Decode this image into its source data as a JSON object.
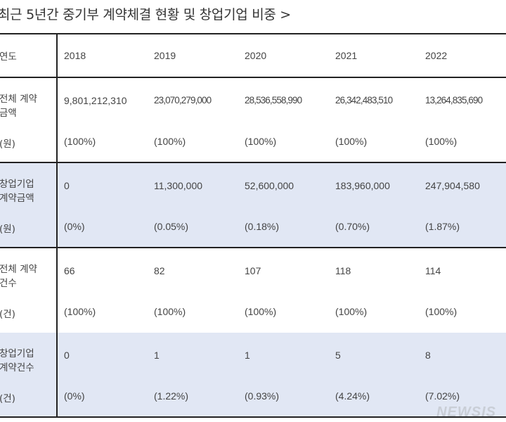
{
  "title": "최근 5년간 중기부 계약체결 현황 및 창업기업 비중 >",
  "header": {
    "label": "연도",
    "years": [
      "2018",
      "2019",
      "2020",
      "2021",
      "2022"
    ]
  },
  "rows": {
    "total_amount": {
      "label": "전체 계약금액",
      "unit": "(원)",
      "values": [
        "9,801,212,310",
        "23,070,279,000",
        "28,536,558,990",
        "26,342,483,510",
        "13,264,835,690"
      ],
      "shares": [
        "(100%)",
        "(100%)",
        "(100%)",
        "(100%)",
        "(100%)"
      ]
    },
    "startup_amount": {
      "label": "창업기업 계약금액",
      "unit": "(원)",
      "values": [
        "0",
        "11,300,000",
        "52,600,000",
        "183,960,000",
        "247,904,580"
      ],
      "shares": [
        "(0%)",
        "(0.05%)",
        "(0.18%)",
        "(0.70%)",
        "(1.87%)"
      ]
    },
    "total_count": {
      "label": "전체 계약건수",
      "unit": "(건)",
      "values": [
        "66",
        "82",
        "107",
        "118",
        "114"
      ],
      "shares": [
        "(100%)",
        "(100%)",
        "(100%)",
        "(100%)",
        "(100%)"
      ]
    },
    "startup_count": {
      "label": "창업기업 계약건수",
      "unit": "(건)",
      "values": [
        "0",
        "1",
        "1",
        "5",
        "8"
      ],
      "shares": [
        "(0%)",
        "(1.22%)",
        "(0.93%)",
        "(4.24%)",
        "(7.02%)"
      ]
    }
  },
  "watermark": "NEWSIS"
}
